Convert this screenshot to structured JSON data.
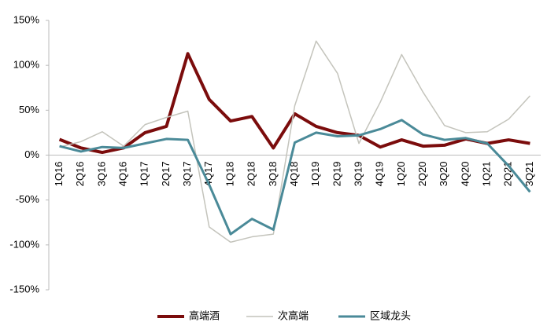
{
  "chart_data": {
    "type": "line",
    "categories": [
      "1Q16",
      "2Q16",
      "3Q16",
      "4Q16",
      "1Q17",
      "2Q17",
      "3Q17",
      "4Q17",
      "1Q18",
      "2Q18",
      "3Q18",
      "4Q18",
      "1Q19",
      "2Q19",
      "3Q19",
      "4Q19",
      "1Q20",
      "2Q20",
      "3Q20",
      "4Q20",
      "1Q21",
      "2Q21",
      "3Q21"
    ],
    "series": [
      {
        "name": "高端酒",
        "color": "#7b0c0c",
        "values": [
          17.5,
          8,
          3,
          8,
          25,
          32,
          113,
          62,
          38,
          43,
          8,
          46,
          32,
          25,
          22,
          9,
          17,
          10,
          11,
          18,
          13,
          17,
          13
        ]
      },
      {
        "name": "次高端",
        "color": "#c4c4bc",
        "values": [
          9,
          15,
          26,
          10,
          34,
          42,
          49,
          -80,
          -97,
          -91,
          -88,
          55,
          127,
          91,
          13,
          59,
          112,
          70,
          33,
          25,
          26,
          40,
          66
        ]
      },
      {
        "name": "区域龙头",
        "color": "#4a8a98",
        "values": [
          10,
          4,
          9,
          8,
          13,
          18,
          17,
          -33,
          -88,
          -71,
          -83,
          14,
          25,
          21,
          22,
          29,
          39,
          23,
          17,
          19,
          13,
          -12,
          -41
        ]
      }
    ],
    "ylim": [
      -150,
      150
    ],
    "yticks": [
      {
        "value": -150,
        "label": "-150%"
      },
      {
        "value": -100,
        "label": "-100%"
      },
      {
        "value": -50,
        "label": "-50%"
      },
      {
        "value": 0,
        "label": "0%"
      },
      {
        "value": 50,
        "label": "50%"
      },
      {
        "value": 100,
        "label": "100%"
      },
      {
        "value": 150,
        "label": "150%"
      }
    ],
    "grid": false
  }
}
